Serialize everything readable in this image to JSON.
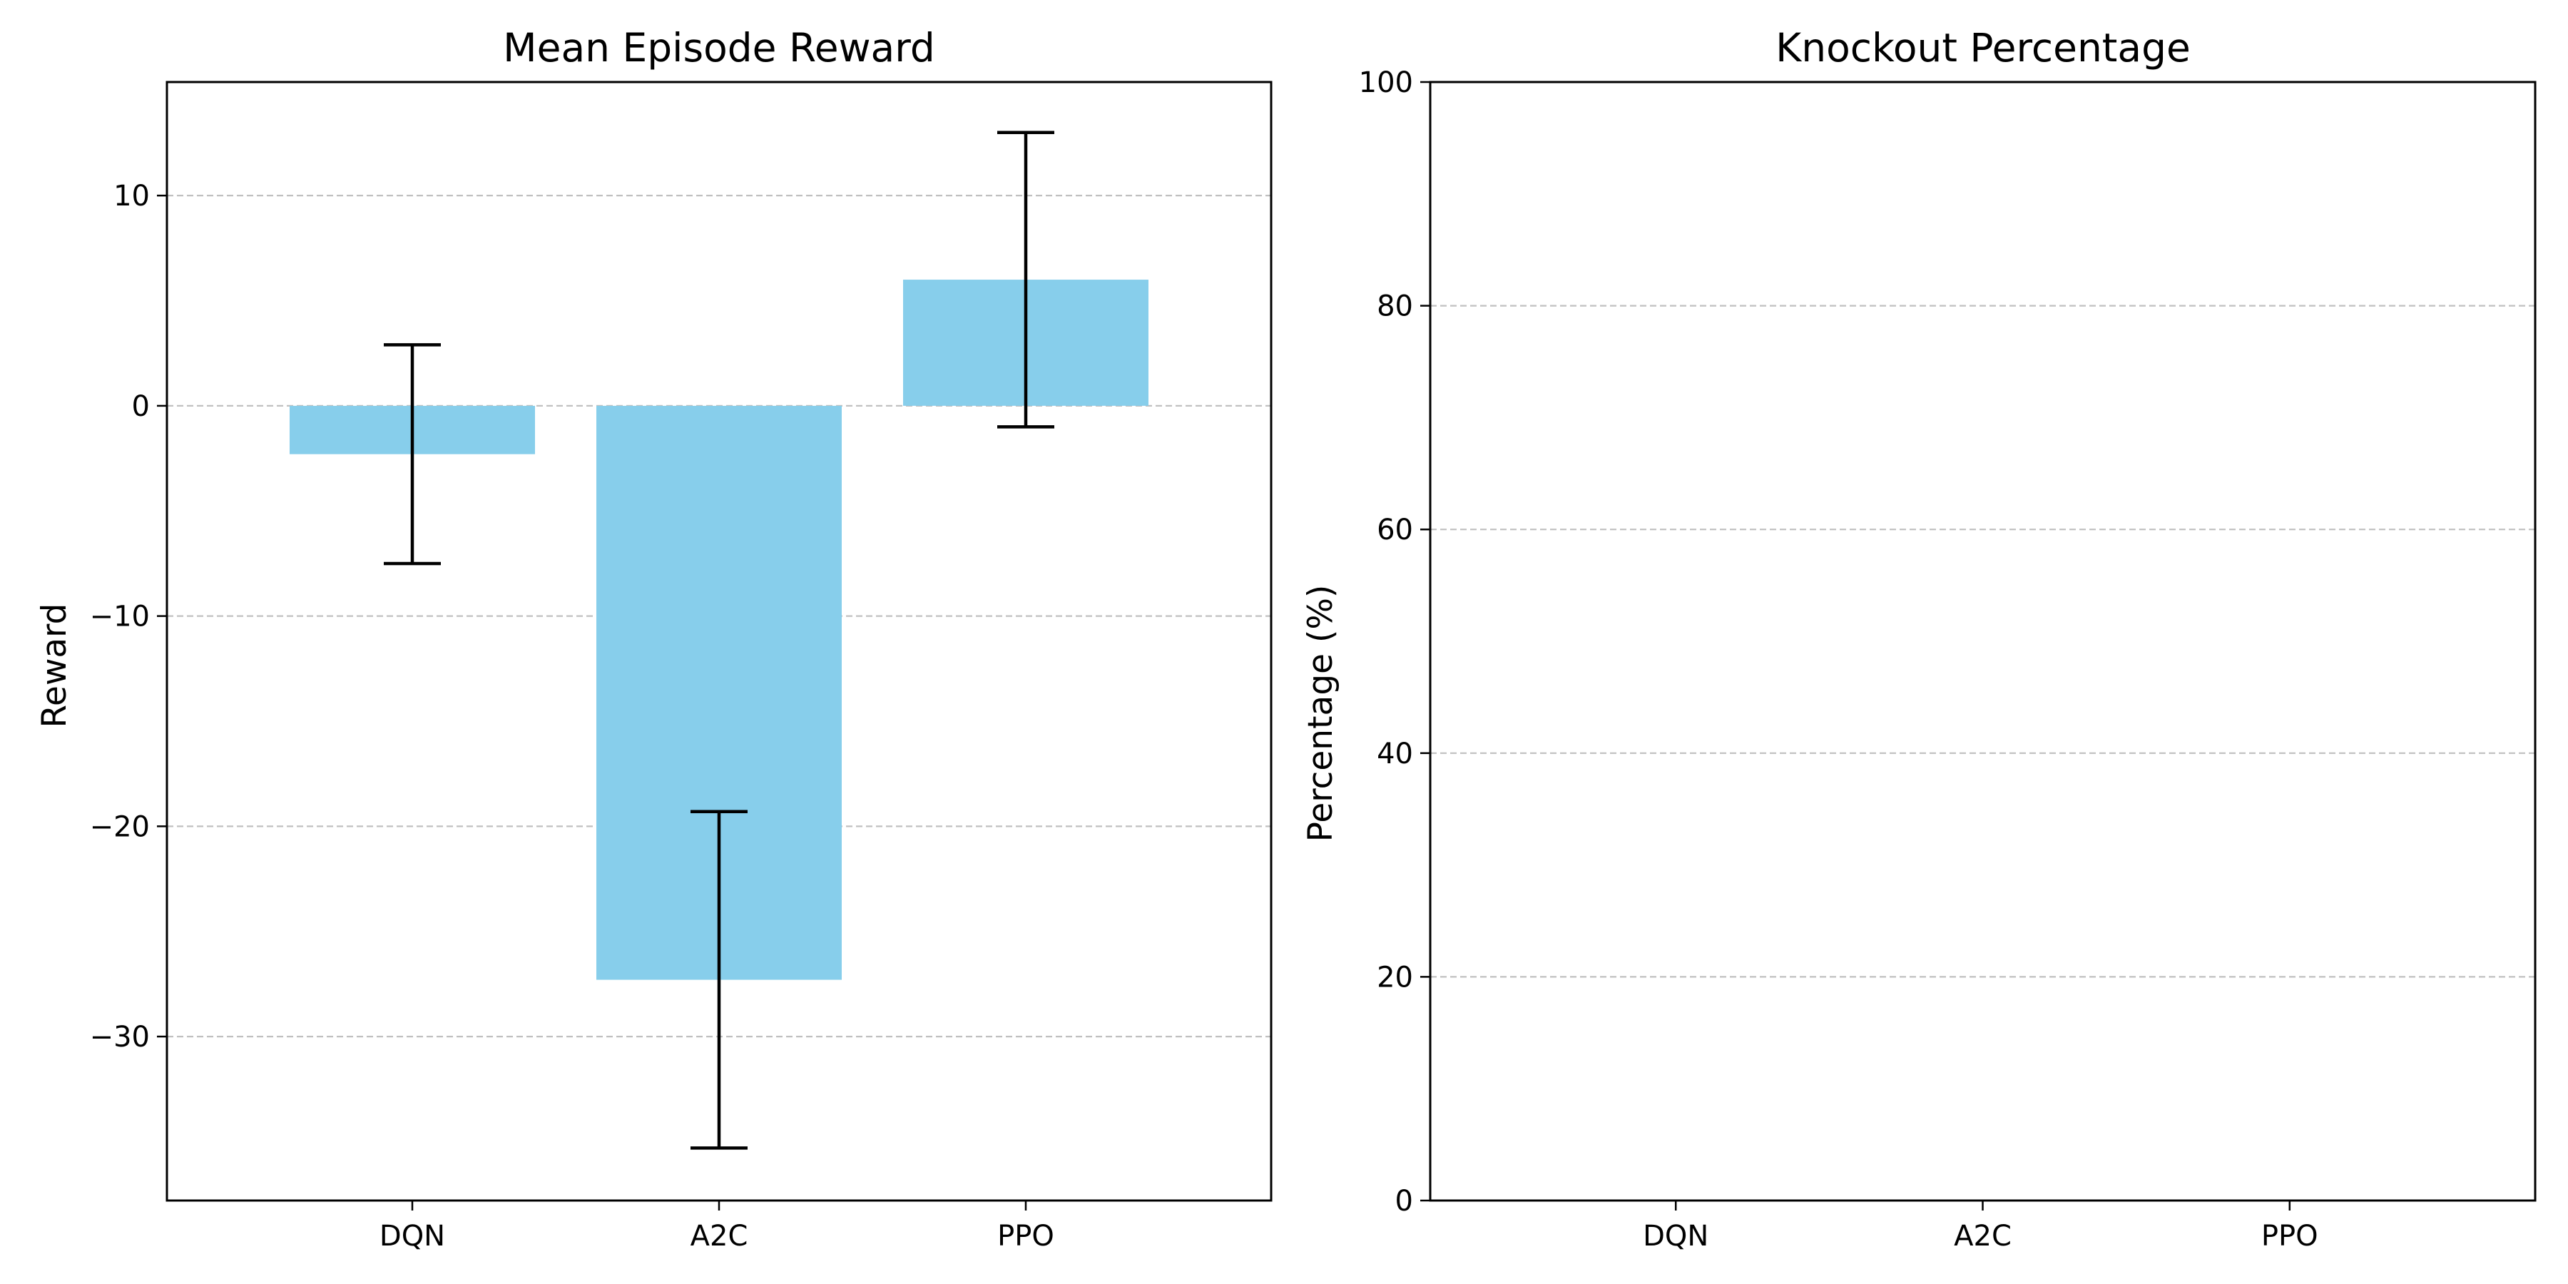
{
  "colors": {
    "bar": "#87ceeb",
    "error_bar": "#000000",
    "grid": "#c0c0c0",
    "axis": "#000000",
    "background": "#ffffff"
  },
  "chart_data": [
    {
      "type": "bar",
      "title": "Mean Episode Reward",
      "xlabel": "",
      "ylabel": "Reward",
      "categories": [
        "DQN",
        "A2C",
        "PPO"
      ],
      "values": [
        -2.3,
        -27.3,
        6.0
      ],
      "errors": [
        5.2,
        8.0,
        7.0
      ],
      "ylim": [
        -37.8,
        15.4
      ],
      "yticks": [
        -30,
        -20,
        -10,
        0,
        10
      ],
      "ytick_labels": [
        "−30",
        "−20",
        "−10",
        "0",
        "10"
      ],
      "grid": "y-dashed",
      "legend": "none"
    },
    {
      "type": "bar",
      "title": "Knockout Percentage",
      "xlabel": "",
      "ylabel": "Percentage (%)",
      "categories": [
        "DQN",
        "A2C",
        "PPO"
      ],
      "values": [
        0,
        0,
        0
      ],
      "ylim": [
        0,
        100
      ],
      "yticks": [
        0,
        20,
        40,
        60,
        80,
        100
      ],
      "ytick_labels": [
        "0",
        "20",
        "40",
        "60",
        "80",
        "100"
      ],
      "grid": "y-dashed",
      "legend": "none"
    }
  ]
}
